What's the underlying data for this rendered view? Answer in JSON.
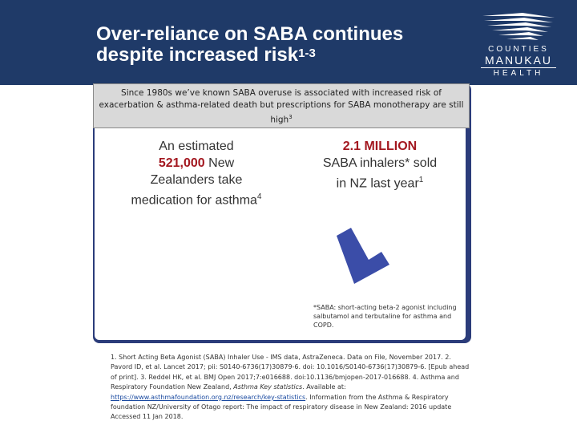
{
  "title": {
    "line1": "Over-reliance on SABA continues",
    "line2": "despite increased risk",
    "sup": "1-3"
  },
  "logo": {
    "line1": "COUNTIES",
    "line2": "MANUKAU",
    "line3": "HEALTH"
  },
  "banner": {
    "text": "Since 1980s we’ve known SABA overuse is associated with increased risk of exacerbation & asthma-related death but prescriptions for SABA monotherapy are still high",
    "sup": "3"
  },
  "stat_left": {
    "prefix": "An estimated",
    "number": "521,000",
    "rest": " New Zealanders take medication for asthma",
    "sup": "4"
  },
  "stat_right": {
    "number": "2.1 MILLION",
    "rest": "SABA inhalers* sold in NZ last year",
    "sup": "1"
  },
  "footnote": "*SABA: short-acting beta-2 agonist including salbutamol and terbutaline for asthma and COPD.",
  "references": {
    "part1": "1. Short Acting Beta Agonist (SABA) Inhaler Use - IMS data, AstraZeneca. Data on File, November 2017. 2. Pavord ID, et al. Lancet 2017; pii: S0140-6736(17)30879-6. doi: 10.1016/S0140-6736(17)30879-6. [Epub ahead of print]. 3. Reddel HK, et al. BMJ Open 2017;7:e016688. doi:10.1136/bmjopen-2017-016688. 4. Asthma and Respiratory Foundation New Zealand, ",
    "italic": "Asthma Key statistics",
    "part2": ". Available at: ",
    "link": "https://www.asthmafoundation.org.nz/research/key-statistics",
    "part3": ". Information from the Asthma & Respiratory foundation NZ/University of Otago report: The impact of respiratory disease in New Zealand: 2016 update Accessed 11 Jan 2018."
  },
  "colors": {
    "header": "#1f3a68",
    "panel": "#2b3c7a",
    "accent_red": "#a31820",
    "inhaler": "#3b4da8"
  }
}
